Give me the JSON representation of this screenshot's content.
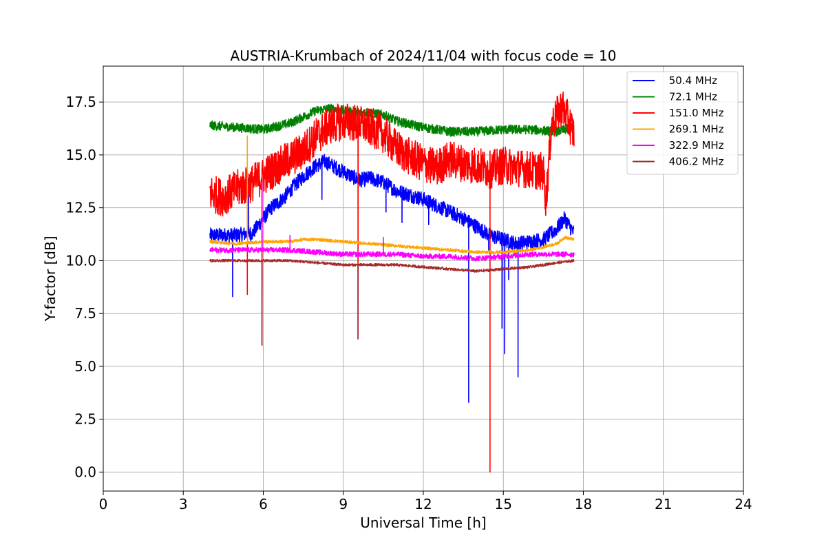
{
  "chart_data": {
    "type": "line",
    "title": "AUSTRIA-Krumbach of 2024/11/04 with focus code = 10",
    "xlabel": "Universal Time [h]",
    "ylabel": "Y-factor [dB]",
    "xlim": [
      0,
      24
    ],
    "ylim": [
      -0.9,
      19.2
    ],
    "xticks": [
      0,
      3,
      6,
      9,
      12,
      15,
      18,
      21,
      24
    ],
    "yticks": [
      "0.0",
      "2.5",
      "5.0",
      "7.5",
      "10.0",
      "12.5",
      "15.0",
      "17.5"
    ],
    "grid": true,
    "legend_position": "top-right",
    "series": [
      {
        "name": " 50.4 MHz",
        "color": "#0000ff",
        "noise": 0.35,
        "x": [
          4.0,
          5.0,
          5.6,
          6.0,
          6.3,
          6.8,
          7.2,
          7.6,
          8.0,
          8.3,
          9.0,
          9.6,
          10.0,
          10.5,
          11.0,
          11.5,
          12.0,
          12.5,
          13.0,
          13.5,
          14.0,
          14.5,
          15.0,
          15.5,
          16.0,
          16.5,
          17.0,
          17.3,
          17.65
        ],
        "y": [
          11.2,
          11.2,
          11.3,
          12.0,
          12.5,
          13.0,
          13.6,
          14.1,
          14.5,
          14.7,
          14.2,
          13.8,
          13.9,
          13.7,
          13.3,
          13.1,
          12.9,
          12.6,
          12.3,
          12.0,
          11.6,
          11.2,
          11.0,
          10.8,
          10.9,
          11.0,
          11.5,
          12.0,
          11.3
        ],
        "spikes": [
          [
            4.85,
            8.3
          ],
          [
            5.45,
            12.6
          ],
          [
            5.45,
            13.9
          ],
          [
            8.2,
            12.9
          ],
          [
            10.6,
            12.3
          ],
          [
            11.2,
            11.8
          ],
          [
            12.2,
            11.7
          ],
          [
            13.2,
            11.9
          ],
          [
            13.7,
            3.3
          ],
          [
            14.45,
            10.5
          ],
          [
            14.95,
            6.8
          ],
          [
            15.05,
            5.6
          ],
          [
            15.2,
            9.1
          ],
          [
            15.55,
            4.5
          ]
        ]
      },
      {
        "name": " 72.1 MHz",
        "color": "#008000",
        "noise": 0.22,
        "x": [
          4.0,
          5.0,
          6.0,
          7.0,
          7.5,
          8.0,
          8.5,
          9.0,
          9.5,
          10.0,
          10.5,
          11.0,
          12.0,
          13.0,
          14.0,
          15.0,
          16.0,
          17.0,
          17.65
        ],
        "y": [
          16.4,
          16.3,
          16.2,
          16.5,
          16.8,
          17.1,
          17.2,
          17.1,
          17.0,
          17.0,
          16.9,
          16.6,
          16.3,
          16.1,
          16.1,
          16.2,
          16.2,
          16.1,
          16.3
        ],
        "spikes": []
      },
      {
        "name": " 151.0 MHz",
        "color": "#ff0000",
        "noise": 0.9,
        "x": [
          4.0,
          4.5,
          5.0,
          5.5,
          6.0,
          6.5,
          7.0,
          7.5,
          8.0,
          8.5,
          9.0,
          9.5,
          10.0,
          10.5,
          11.0,
          11.5,
          12.0,
          12.5,
          13.0,
          13.5,
          14.0,
          14.5,
          15.0,
          15.5,
          16.0,
          16.5,
          16.6,
          16.8,
          17.2,
          17.65
        ],
        "y": [
          13.2,
          13.0,
          13.4,
          13.6,
          14.0,
          14.4,
          14.8,
          15.2,
          15.9,
          16.4,
          16.6,
          16.5,
          16.3,
          16.0,
          15.3,
          14.9,
          14.6,
          14.4,
          14.8,
          14.6,
          14.5,
          14.3,
          14.5,
          14.4,
          14.3,
          14.2,
          12.8,
          16.4,
          17.3,
          16.0
        ],
        "spikes": [
          [
            5.4,
            8.4
          ],
          [
            5.95,
            6.0
          ],
          [
            9.55,
            6.3
          ],
          [
            14.5,
            0.0
          ]
        ]
      },
      {
        "name": " 269.1 MHz",
        "color": "#ffa500",
        "noise": 0.07,
        "x": [
          4.0,
          5.0,
          6.0,
          7.0,
          7.5,
          8.0,
          9.0,
          10.0,
          11.0,
          12.0,
          13.0,
          14.0,
          15.0,
          16.0,
          17.0,
          17.3,
          17.65
        ],
        "y": [
          10.9,
          10.8,
          10.9,
          10.9,
          11.0,
          11.0,
          10.9,
          10.8,
          10.7,
          10.6,
          10.5,
          10.4,
          10.4,
          10.5,
          10.8,
          11.1,
          11.0
        ],
        "spikes": [
          [
            5.4,
            15.9
          ]
        ]
      },
      {
        "name": " 322.9 MHz",
        "color": "#ff00ff",
        "noise": 0.12,
        "x": [
          4.0,
          5.0,
          6.0,
          7.0,
          8.0,
          9.0,
          10.0,
          11.0,
          12.0,
          13.0,
          14.0,
          15.0,
          16.0,
          17.0,
          17.65
        ],
        "y": [
          10.5,
          10.5,
          10.5,
          10.5,
          10.4,
          10.3,
          10.3,
          10.3,
          10.2,
          10.2,
          10.1,
          10.2,
          10.3,
          10.3,
          10.3
        ],
        "spikes": [
          [
            5.95,
            13.7
          ],
          [
            7.0,
            11.2
          ],
          [
            10.5,
            11.1
          ]
        ]
      },
      {
        "name": " 406.2 MHz",
        "color": "#a52a2a",
        "noise": 0.06,
        "x": [
          4.0,
          5.0,
          6.0,
          7.0,
          8.0,
          9.0,
          10.0,
          11.0,
          12.0,
          13.0,
          14.0,
          15.0,
          16.0,
          17.0,
          17.65
        ],
        "y": [
          10.0,
          10.0,
          10.0,
          10.0,
          9.9,
          9.8,
          9.8,
          9.8,
          9.7,
          9.6,
          9.5,
          9.6,
          9.7,
          9.9,
          10.0
        ],
        "spikes": [
          [
            5.95,
            6.0
          ],
          [
            9.55,
            6.3
          ]
        ]
      }
    ]
  }
}
